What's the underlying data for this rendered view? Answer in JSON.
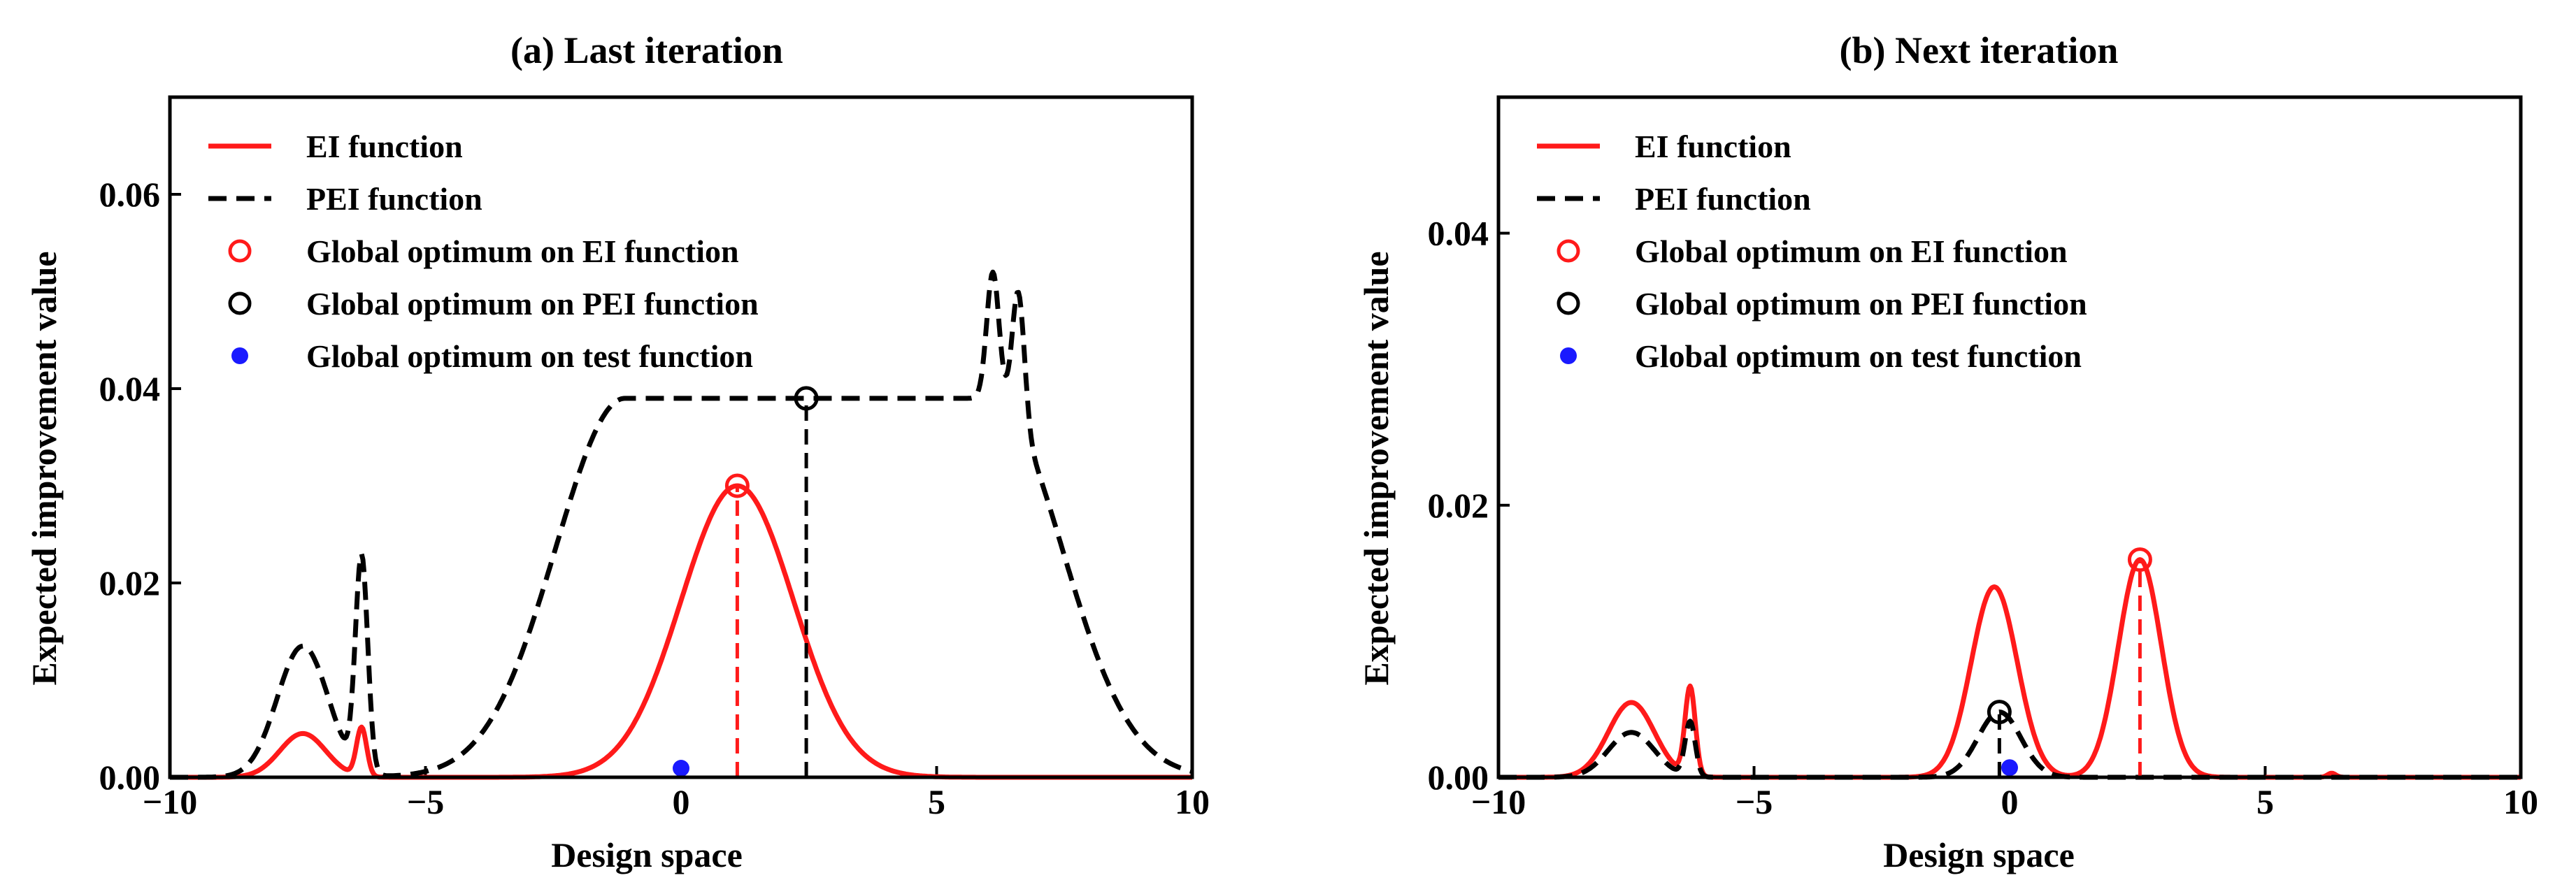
{
  "figure": {
    "background": "#ffffff"
  },
  "chart_data": [
    {
      "type": "line",
      "title": "(a) Last iteration",
      "xlabel": "Design space",
      "ylabel": "Expected improvement value",
      "xlim": [
        -10,
        10
      ],
      "ylim": [
        0,
        0.07
      ],
      "xticks": [
        -10,
        -5,
        0,
        5,
        10
      ],
      "xtick_labels": [
        "−10",
        "−5",
        "0",
        "5",
        "10"
      ],
      "yticks": [
        0,
        0.02,
        0.04,
        0.06
      ],
      "ytick_labels": [
        "0.00",
        "0.02",
        "0.04",
        "0.06"
      ],
      "grid": false,
      "legend_position": "top-left",
      "legend": [
        {
          "label": "EI function",
          "kind": "line-solid",
          "color": "#ff1a1a"
        },
        {
          "label": "PEI function",
          "kind": "line-dashed",
          "color": "#000000"
        },
        {
          "label": "Global optimum on EI function",
          "kind": "marker-open",
          "color": "#ff1a1a"
        },
        {
          "label": "Global optimum on PEI function",
          "kind": "marker-open",
          "color": "#000000"
        },
        {
          "label": "Global optimum on test function",
          "kind": "marker-filled",
          "color": "#1a1aff"
        }
      ],
      "series": [
        {
          "name": "EI function",
          "style": "solid",
          "color": "#ff1a1a",
          "bumps": [
            [
              -7.4,
              0.0045,
              0.45
            ],
            [
              -6.25,
              0.005,
              0.1
            ],
            [
              1.1,
              0.03,
              1.1
            ]
          ]
        },
        {
          "name": "PEI function",
          "style": "dashed",
          "color": "#000000",
          "bumps": [
            [
              -7.4,
              0.0135,
              0.5
            ],
            [
              -6.25,
              0.022,
              0.12
            ],
            [
              2.5,
              0.039,
              1.35,
              3.6
            ],
            [
              6.1,
              0.013,
              0.12
            ],
            [
              6.6,
              0.0135,
              0.12
            ]
          ]
        }
      ],
      "markers": [
        {
          "name": "Global optimum on EI function",
          "x": 1.1,
          "y": 0.03,
          "style": "open",
          "color": "#ff1a1a",
          "drop_line": true
        },
        {
          "name": "Global optimum on PEI function",
          "x": 2.45,
          "y": 0.039,
          "style": "open",
          "color": "#000000",
          "drop_line": true
        },
        {
          "name": "Global optimum on test function",
          "x": 0.0,
          "y": 0.0005,
          "style": "filled",
          "color": "#1a1aff",
          "drop_line": false
        }
      ]
    },
    {
      "type": "line",
      "title": "(b) Next iteration",
      "xlabel": "Design space",
      "ylabel": "Expected improvement value",
      "xlim": [
        -10,
        10
      ],
      "ylim": [
        0,
        0.05
      ],
      "xticks": [
        -10,
        -5,
        0,
        5,
        10
      ],
      "xtick_labels": [
        "−10",
        "−5",
        "0",
        "5",
        "10"
      ],
      "yticks": [
        0,
        0.02,
        0.04
      ],
      "ytick_labels": [
        "0.00",
        "0.02",
        "0.04"
      ],
      "grid": false,
      "legend_position": "top-left",
      "legend": [
        {
          "label": "EI function",
          "kind": "line-solid",
          "color": "#ff1a1a"
        },
        {
          "label": "PEI function",
          "kind": "line-dashed",
          "color": "#000000"
        },
        {
          "label": "Global optimum on EI function",
          "kind": "marker-open",
          "color": "#ff1a1a"
        },
        {
          "label": "Global optimum on PEI function",
          "kind": "marker-open",
          "color": "#000000"
        },
        {
          "label": "Global optimum on test function",
          "kind": "marker-filled",
          "color": "#1a1aff"
        }
      ],
      "series": [
        {
          "name": "EI function",
          "style": "solid",
          "color": "#ff1a1a",
          "bumps": [
            [
              -7.4,
              0.0055,
              0.45
            ],
            [
              -6.25,
              0.0065,
              0.1
            ],
            [
              -0.3,
              0.014,
              0.45
            ],
            [
              2.55,
              0.016,
              0.42
            ],
            [
              6.3,
              0.0003,
              0.08
            ]
          ]
        },
        {
          "name": "PEI function",
          "style": "dashed",
          "color": "#000000",
          "bumps": [
            [
              -7.4,
              0.0033,
              0.45
            ],
            [
              -6.25,
              0.004,
              0.1
            ],
            [
              -0.2,
              0.0048,
              0.42
            ]
          ]
        }
      ],
      "markers": [
        {
          "name": "Global optimum on EI function",
          "x": 2.55,
          "y": 0.016,
          "style": "open",
          "color": "#ff1a1a",
          "drop_line": true
        },
        {
          "name": "Global optimum on PEI function",
          "x": -0.2,
          "y": 0.0048,
          "style": "open",
          "color": "#000000",
          "drop_line": true
        },
        {
          "name": "Global optimum on test function",
          "x": 0.0,
          "y": 0.0004,
          "style": "filled",
          "color": "#1a1aff",
          "drop_line": false
        }
      ]
    }
  ]
}
